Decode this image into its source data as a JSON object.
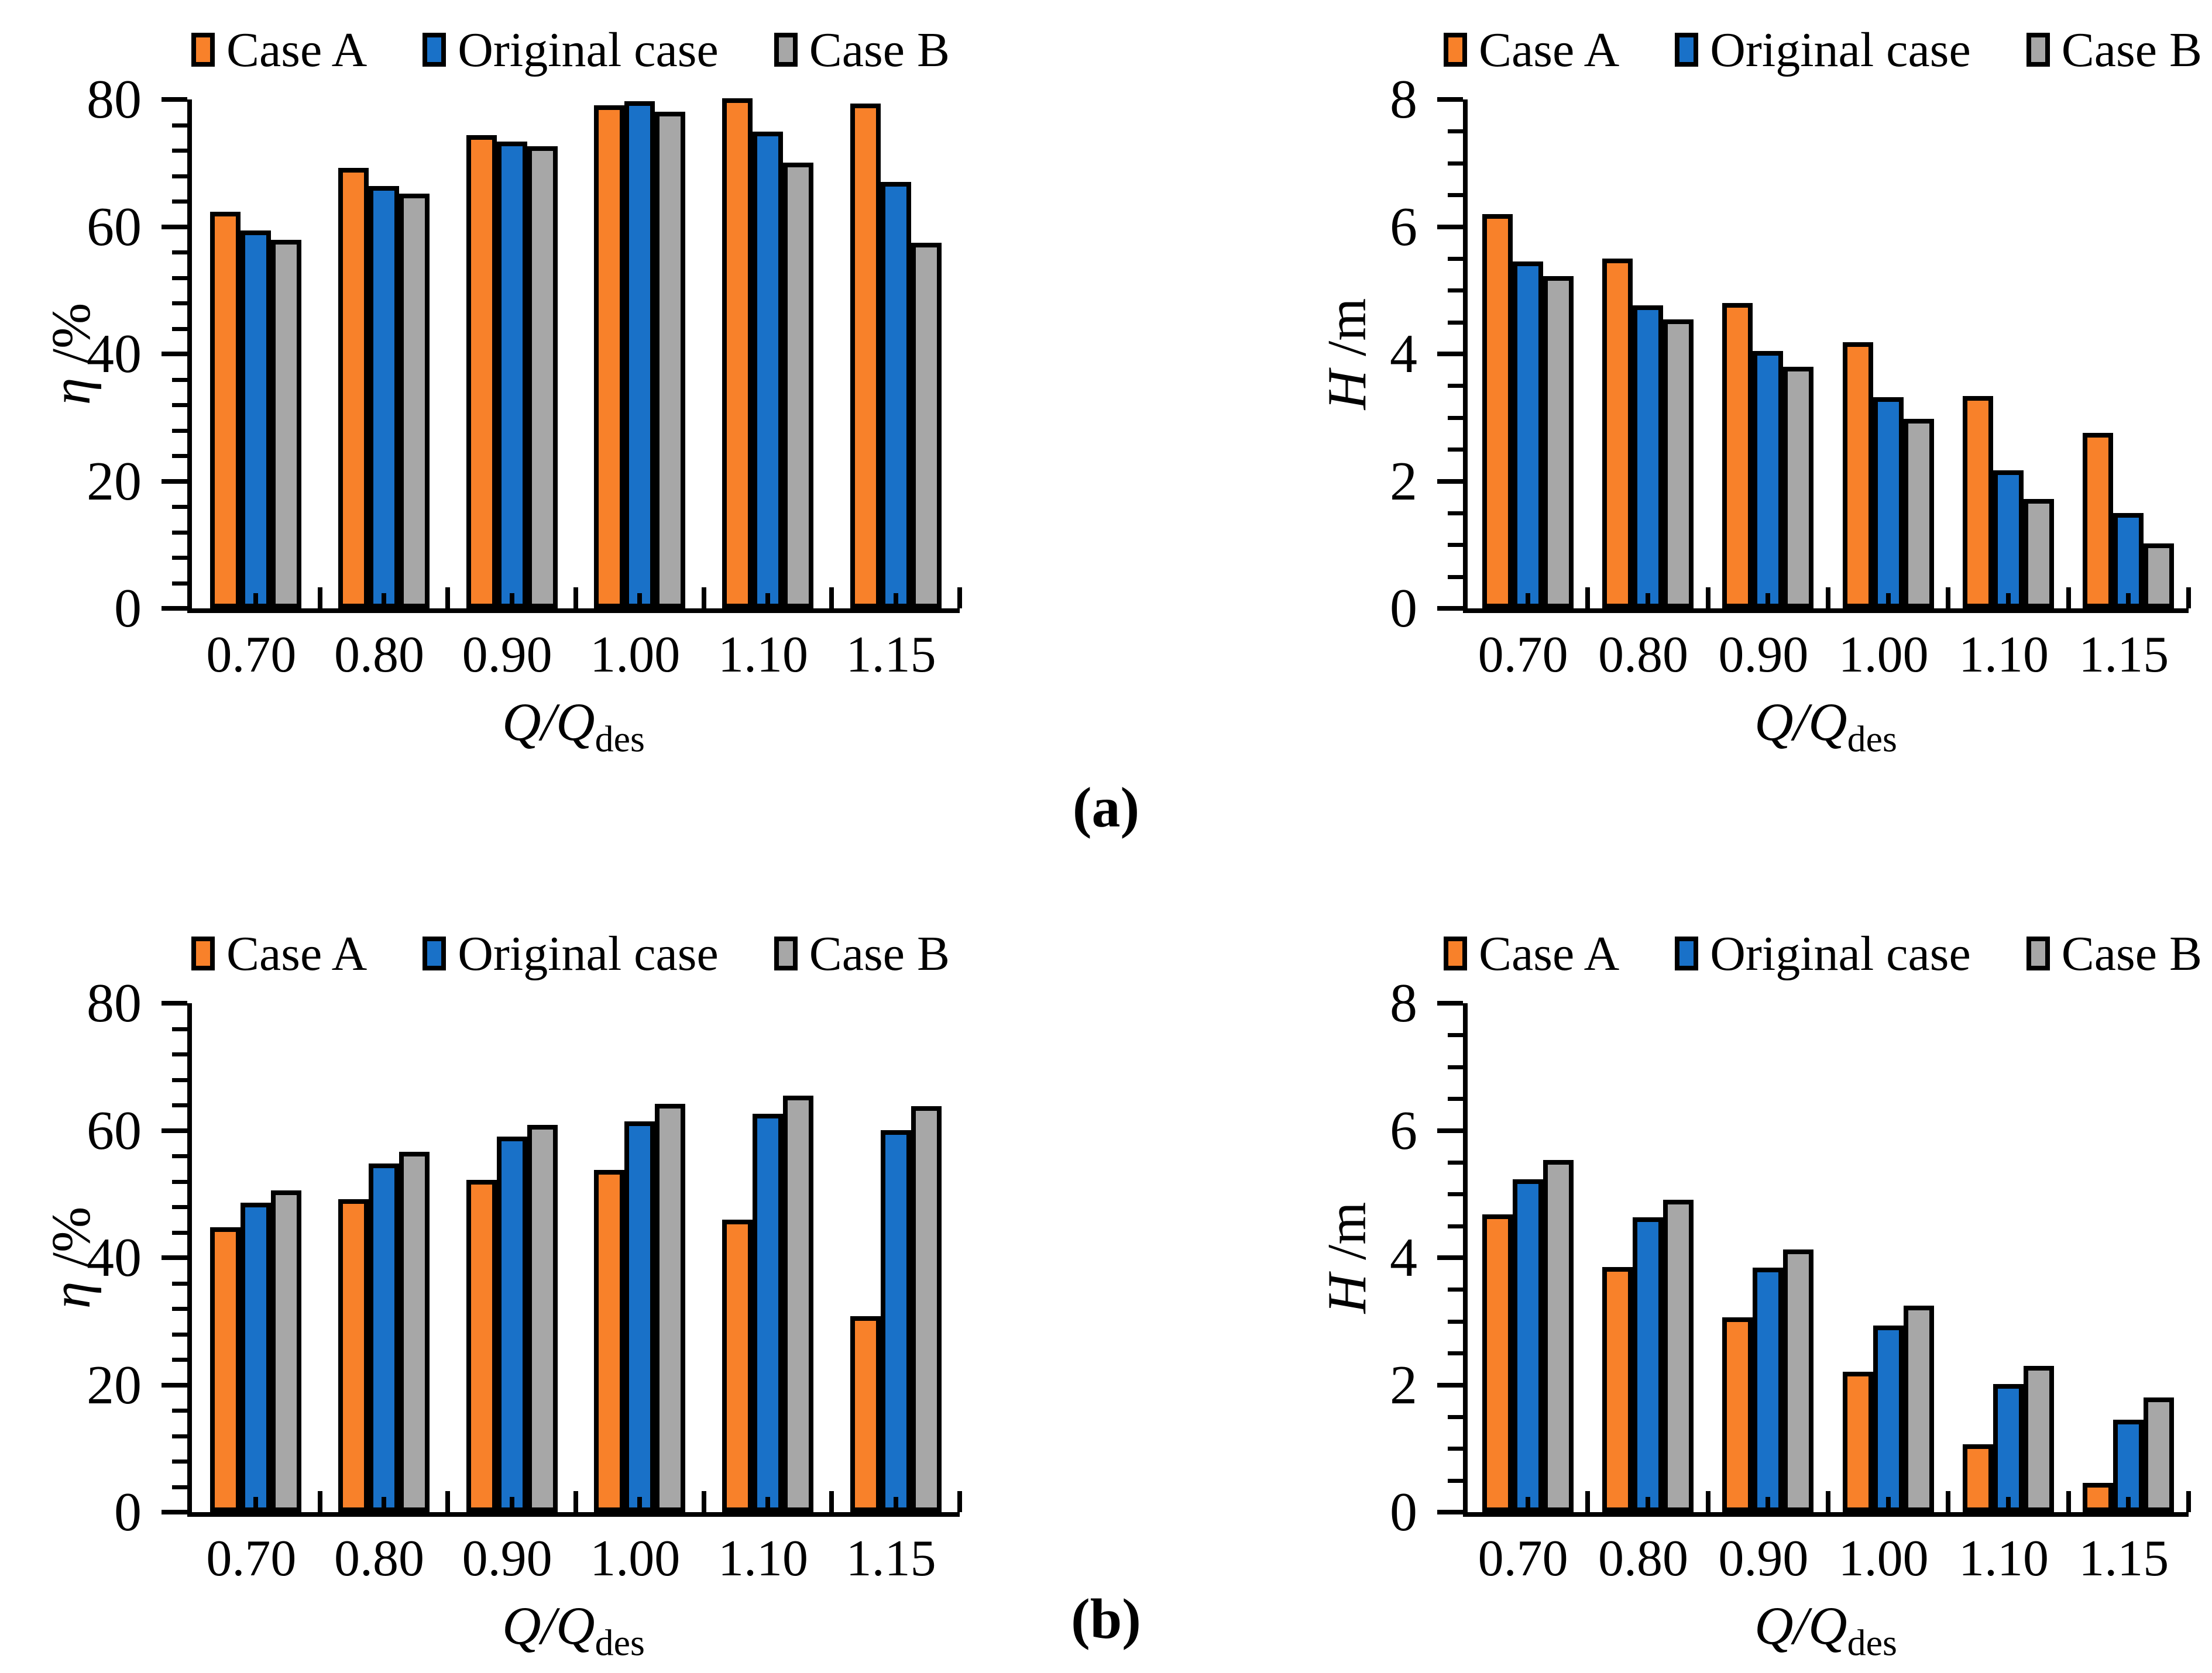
{
  "panels": {
    "a": "(a)",
    "b": "(b)"
  },
  "colors": {
    "case_a": "#F8812A",
    "original": "#1971C8",
    "case_b": "#A7A7A7",
    "axis": "#000000"
  },
  "legend": {
    "position": "top",
    "items": [
      {
        "label": "Case A",
        "color": "#F8812A"
      },
      {
        "label": "Original case",
        "color": "#1971C8"
      },
      {
        "label": "Case B",
        "color": "#A7A7A7"
      }
    ]
  },
  "chart_data": [
    {
      "type": "bar",
      "panel": "a",
      "position": "left",
      "title": "",
      "ylabel_symbol": "η",
      "ylabel_rest": " /%",
      "xlabel_main": "Q/Q",
      "xlabel_sub": "des",
      "ylim": [
        0,
        80
      ],
      "ytick_major": 20,
      "ytick_minor": 4,
      "grid": false,
      "categories": [
        "0.70",
        "0.80",
        "0.90",
        "1.00",
        "1.10",
        "1.15"
      ],
      "series": [
        {
          "name": "Case A",
          "color": "#F8812A",
          "values": [
            62.3,
            69.2,
            74.4,
            79.1,
            80.2,
            79.4
          ]
        },
        {
          "name": "Original case",
          "color": "#1971C8",
          "values": [
            59.4,
            66.4,
            73.4,
            79.7,
            74.9,
            67.0
          ]
        },
        {
          "name": "Case B",
          "color": "#A7A7A7",
          "values": [
            57.9,
            65.2,
            72.6,
            78.1,
            70.1,
            57.5
          ]
        }
      ]
    },
    {
      "type": "bar",
      "panel": "a",
      "position": "right",
      "title": "",
      "ylabel_symbol": "H",
      "ylabel_rest": " /m",
      "xlabel_main": "Q/Q",
      "xlabel_sub": "des",
      "ylim": [
        0,
        8
      ],
      "ytick_major": 2,
      "ytick_minor": 0.5,
      "grid": false,
      "categories": [
        "0.70",
        "0.80",
        "0.90",
        "1.00",
        "1.10",
        "1.15"
      ],
      "series": [
        {
          "name": "Case A",
          "color": "#F8812A",
          "values": [
            6.2,
            5.5,
            4.8,
            4.18,
            3.34,
            2.76
          ]
        },
        {
          "name": "Original case",
          "color": "#1971C8",
          "values": [
            5.45,
            4.76,
            4.05,
            3.32,
            2.17,
            1.5
          ]
        },
        {
          "name": "Case B",
          "color": "#A7A7A7",
          "values": [
            5.22,
            4.54,
            3.8,
            2.98,
            1.72,
            1.02
          ]
        }
      ]
    },
    {
      "type": "bar",
      "panel": "b",
      "position": "left",
      "title": "",
      "ylabel_symbol": "η",
      "ylabel_rest": " /%",
      "xlabel_main": "Q/Q",
      "xlabel_sub": "des",
      "ylim": [
        0,
        80
      ],
      "ytick_major": 20,
      "ytick_minor": 4,
      "grid": false,
      "categories": [
        "0.70",
        "0.80",
        "0.90",
        "1.00",
        "1.10",
        "1.15"
      ],
      "series": [
        {
          "name": "Case A",
          "color": "#F8812A",
          "values": [
            44.8,
            49.2,
            52.2,
            53.8,
            46.0,
            30.8
          ]
        },
        {
          "name": "Original case",
          "color": "#1971C8",
          "values": [
            48.6,
            54.8,
            59.0,
            61.4,
            62.6,
            60.0
          ]
        },
        {
          "name": "Case B",
          "color": "#A7A7A7",
          "values": [
            50.6,
            56.6,
            60.9,
            64.2,
            65.5,
            63.8
          ]
        }
      ]
    },
    {
      "type": "bar",
      "panel": "b",
      "position": "right",
      "title": "",
      "ylabel_symbol": "H",
      "ylabel_rest": " /m",
      "xlabel_main": "Q/Q",
      "xlabel_sub": "des",
      "ylim": [
        0,
        8
      ],
      "ytick_major": 2,
      "ytick_minor": 0.5,
      "grid": false,
      "categories": [
        "0.70",
        "0.80",
        "0.90",
        "1.00",
        "1.10",
        "1.15"
      ],
      "series": [
        {
          "name": "Case A",
          "color": "#F8812A",
          "values": [
            4.68,
            3.85,
            3.06,
            2.21,
            1.07,
            0.46
          ]
        },
        {
          "name": "Original case",
          "color": "#1971C8",
          "values": [
            5.23,
            4.63,
            3.84,
            2.93,
            2.01,
            1.45
          ]
        },
        {
          "name": "Case B",
          "color": "#A7A7A7",
          "values": [
            5.54,
            4.91,
            4.13,
            3.25,
            2.3,
            1.8
          ]
        }
      ]
    }
  ]
}
